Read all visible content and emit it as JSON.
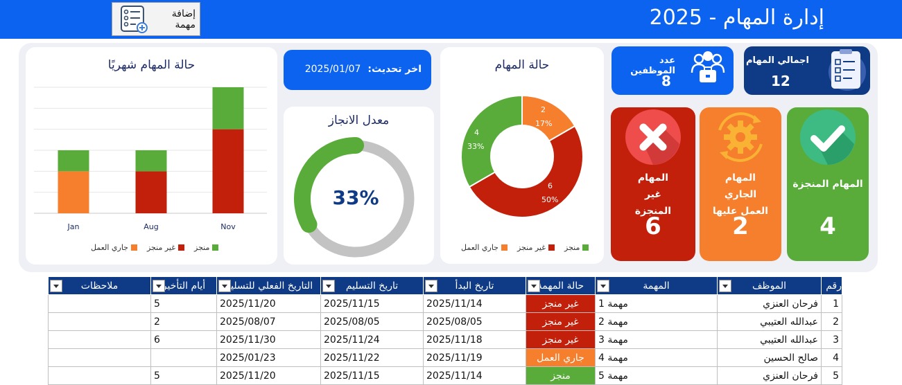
{
  "header": {
    "title": "إدارة المهام - 2025",
    "add_button_label": "إضافة مهمة"
  },
  "colors": {
    "topbar": "#0b63f0",
    "done": "#5aac3a",
    "not_done": "#c3200b",
    "in_progress": "#f57f2c",
    "navy": "#0e3a86"
  },
  "kpis": {
    "total_tasks_label": "اجمالي المهام",
    "total_tasks_value": "12",
    "employees_label": "عدد الموظفين",
    "employees_value": "8",
    "updated_label": "اخر تحديث:",
    "updated_value": "2025/01/07"
  },
  "status_cards": [
    {
      "label": "المهام المنجزة",
      "value": "4",
      "icon": "check-icon"
    },
    {
      "label": "المهام الجاري العمل عليها",
      "value": "2",
      "icon": "gear-icon"
    },
    {
      "label": "المهام غير المنجزة",
      "value": "6",
      "icon": "x-icon"
    }
  ],
  "completion": {
    "title": "معدل الانجاز",
    "value_label": "33%",
    "fraction": 0.33
  },
  "pie": {
    "title": "حالة المهام",
    "labels": {
      "in_progress_count": "2",
      "in_progress_pct": "17%",
      "not_done_count": "6",
      "not_done_pct": "50%",
      "done_count": "4",
      "done_pct": "33%"
    },
    "legend": [
      "منجز",
      "غير منجز",
      "جاري العمل"
    ]
  },
  "chart_data": [
    {
      "type": "pie",
      "title": "حالة المهام",
      "categories": [
        "جاري العمل",
        "غير منجز",
        "منجز"
      ],
      "values": [
        2,
        6,
        4
      ],
      "legend_position": "bottom"
    },
    {
      "type": "bar",
      "title": "حالة المهام شهريًا",
      "categories": [
        "Jan",
        "Aug",
        "Nov"
      ],
      "series": [
        {
          "name": "جاري العمل",
          "values": [
            1,
            0,
            0
          ]
        },
        {
          "name": "غير منجز",
          "values": [
            0,
            1,
            2
          ]
        },
        {
          "name": "منجز",
          "values": [
            0.5,
            0.5,
            1
          ]
        }
      ],
      "stacked": true,
      "grid": true,
      "legend_position": "bottom"
    }
  ],
  "bar_chart": {
    "title": "حالة المهام شهريًا",
    "legend": [
      "منجز",
      "غير منجز",
      "جاري العمل"
    ]
  },
  "table": {
    "headers": [
      "رقم",
      "الموظف",
      "المهمة",
      "حالة المهمة",
      "تاريخ البدأ",
      "تاريخ التسليم",
      "التاريخ الفعلي للتسليم",
      "أيام التأخير",
      "ملاحظات"
    ],
    "rows": [
      [
        "1",
        "فرحان العنزي",
        "مهمة 1",
        "غير منجز",
        "2025/11/14",
        "2025/11/15",
        "2025/11/20",
        "5",
        ""
      ],
      [
        "2",
        "عبدالله العتيبي",
        "مهمة 2",
        "غير منجز",
        "2025/08/05",
        "2025/08/05",
        "2025/08/07",
        "2",
        ""
      ],
      [
        "3",
        "عبدالله العتيبي",
        "مهمة 3",
        "غير منجز",
        "2025/11/18",
        "2025/11/24",
        "2025/11/30",
        "6",
        ""
      ],
      [
        "4",
        "صالح الحسين",
        "مهمة 4",
        "جاري العمل",
        "2025/11/19",
        "2025/11/22",
        "2025/01/23",
        "",
        ""
      ],
      [
        "5",
        "فرحان العنزي",
        "مهمة 5",
        "منجز",
        "2025/11/14",
        "2025/11/15",
        "2025/11/20",
        "5",
        ""
      ]
    ]
  }
}
